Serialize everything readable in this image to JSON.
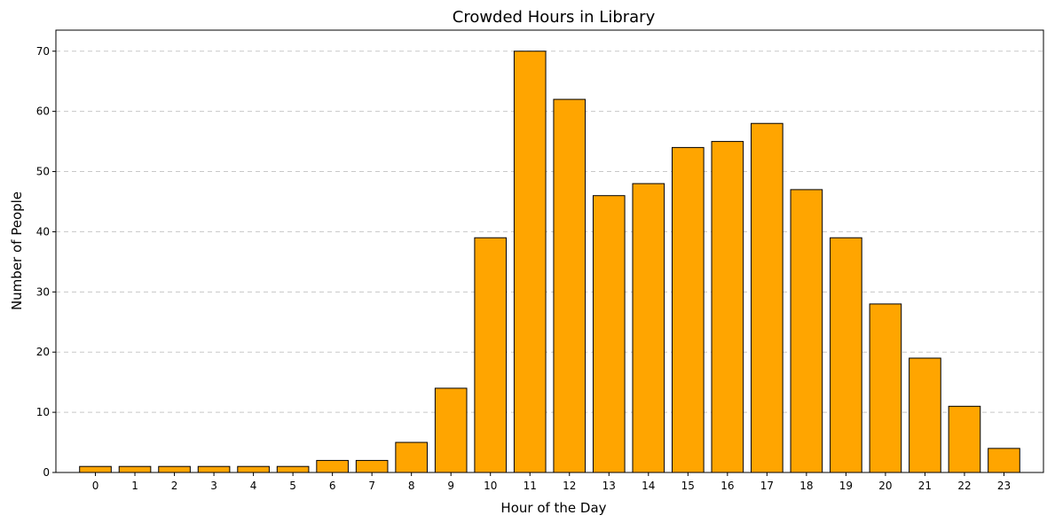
{
  "chart_data": {
    "type": "bar",
    "title": "Crowded Hours in Library",
    "xlabel": "Hour of the Day",
    "ylabel": "Number of People",
    "categories": [
      "0",
      "1",
      "2",
      "3",
      "4",
      "5",
      "6",
      "7",
      "8",
      "9",
      "10",
      "11",
      "12",
      "13",
      "14",
      "15",
      "16",
      "17",
      "18",
      "19",
      "20",
      "21",
      "22",
      "23"
    ],
    "values": [
      1,
      1,
      1,
      1,
      1,
      1,
      2,
      2,
      5,
      14,
      39,
      70,
      62,
      46,
      48,
      54,
      55,
      58,
      47,
      39,
      28,
      19,
      11,
      4
    ],
    "ylim": [
      0,
      73.5
    ],
    "yticks": [
      0,
      10,
      20,
      30,
      40,
      50,
      60,
      70
    ],
    "grid": "y-dashed",
    "bar_color": "#FFA500",
    "edge_color": "#000000",
    "grid_color": "#c8c8c8"
  }
}
